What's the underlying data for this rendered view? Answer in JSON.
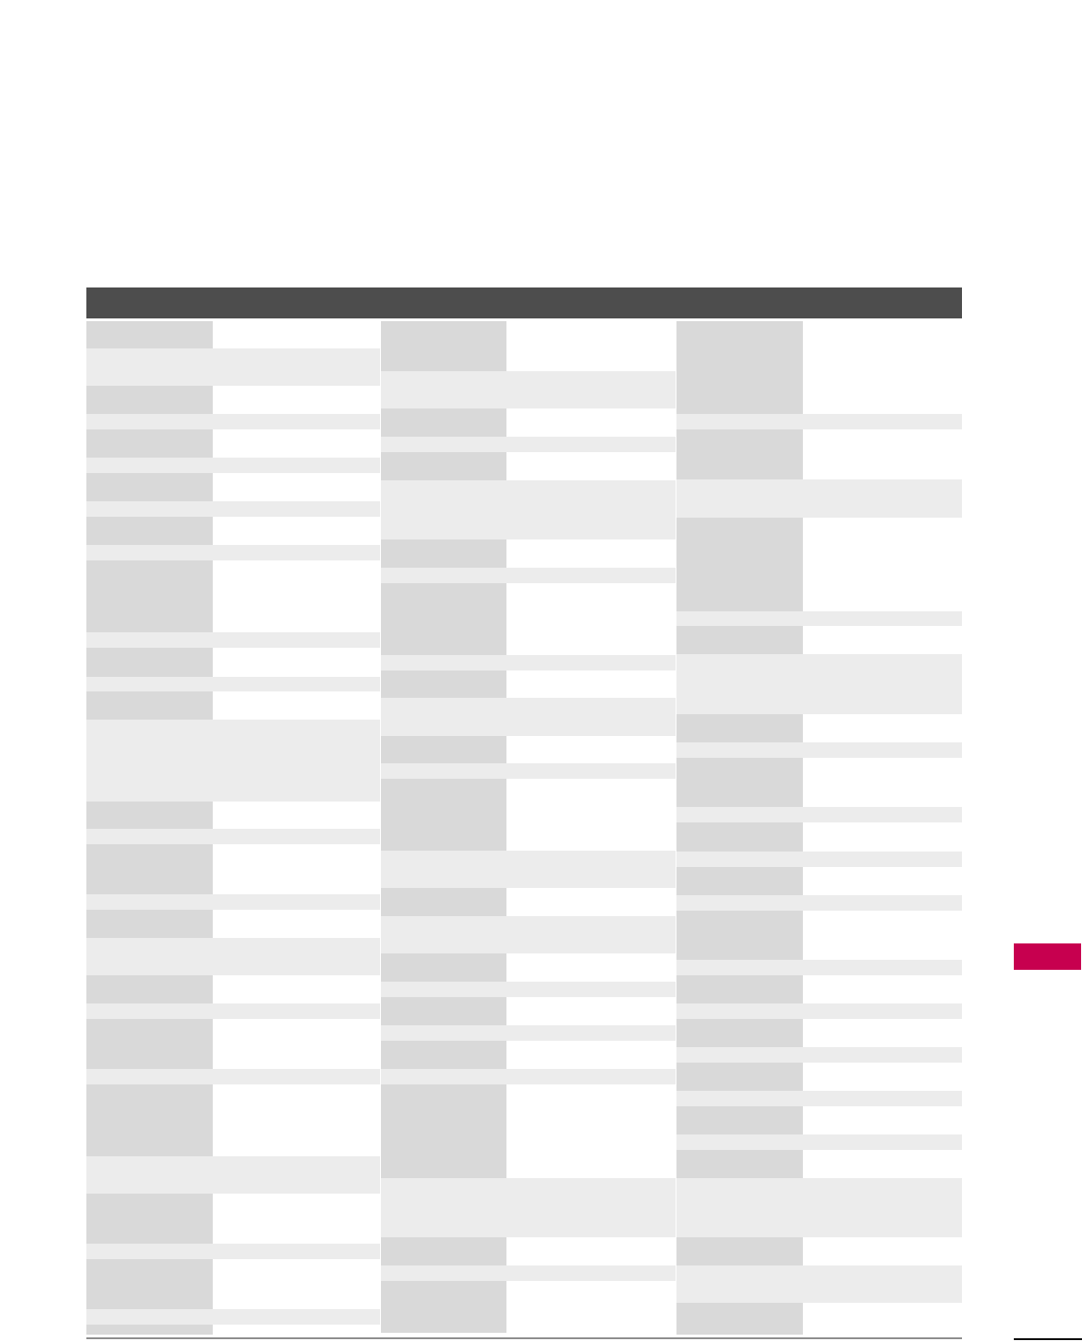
{
  "colors": {
    "header": "#4d4d4d",
    "label_cell": "#d9d9d9",
    "band": "#ececec",
    "value_cell": "#ffffff",
    "side_tab": "#c7004f",
    "table_rule": "#8c8c8c",
    "page_rule": "#000000"
  }
}
